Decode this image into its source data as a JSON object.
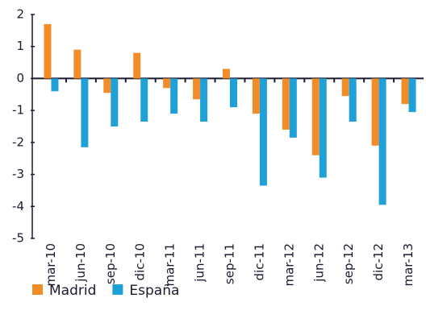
{
  "chart_data": {
    "type": "bar",
    "categories": [
      "mar-10",
      "jun-10",
      "sep-10",
      "dic-10",
      "mar-11",
      "jun-11",
      "sep-11",
      "dic-11",
      "mar-12",
      "jun-12",
      "sep-12",
      "dic-12",
      "mar-13"
    ],
    "series": [
      {
        "name": "Madrid",
        "color": "#f28c28",
        "values": [
          1.7,
          0.9,
          -0.45,
          0.8,
          -0.3,
          -0.65,
          0.3,
          -1.1,
          -1.6,
          -2.4,
          -0.55,
          -2.1,
          -0.8
        ]
      },
      {
        "name": "España",
        "color": "#1fa0d8",
        "values": [
          -0.4,
          -2.15,
          -1.5,
          -1.35,
          -1.1,
          -1.35,
          -0.9,
          -3.35,
          -1.85,
          -3.1,
          -1.35,
          -3.95,
          -1.05
        ]
      }
    ],
    "ylim": [
      -5,
      2
    ],
    "yticks": [
      -5,
      -4,
      -3,
      -2,
      -1,
      0,
      1,
      2
    ],
    "grid": false,
    "legend": "bottom"
  }
}
